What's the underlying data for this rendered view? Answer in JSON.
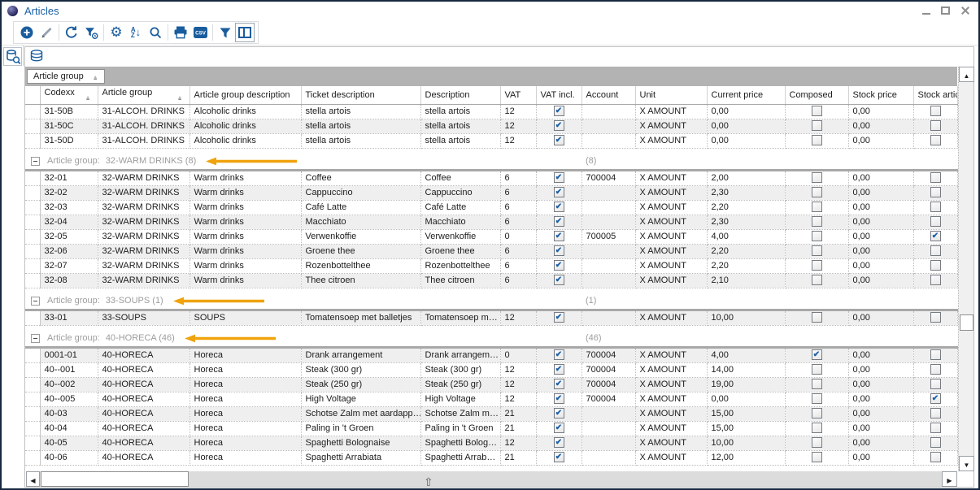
{
  "window": {
    "title": "Articles"
  },
  "toolbar": {
    "csv_label": "CSV",
    "buttons": [
      {
        "name": "add"
      },
      {
        "name": "edit"
      },
      {
        "name": "refresh"
      },
      {
        "name": "filter-reset"
      },
      {
        "name": "settings"
      },
      {
        "name": "sort-az"
      },
      {
        "name": "search"
      },
      {
        "name": "print"
      },
      {
        "name": "export-csv"
      },
      {
        "name": "filter"
      },
      {
        "name": "columns"
      }
    ]
  },
  "group_panel": {
    "chip_label": "Article group"
  },
  "annotation": {
    "arrow_color": "#f0a30c"
  },
  "grid": {
    "columns": [
      "Codexx",
      "Article group",
      "Article group description",
      "Ticket description",
      "Description",
      "VAT",
      "VAT incl.",
      "Account",
      "Unit",
      "Current price",
      "Composed",
      "Stock price",
      "Stock article"
    ],
    "sorted_columns": [
      "Codexx",
      "Article group"
    ],
    "group_label_prefix": "Article group:",
    "groups": [
      {
        "rows": [
          {
            "codexx": "31-50B",
            "article_group": "31-ALCOH. DRINKS",
            "group_desc": "Alcoholic drinks",
            "ticket": "stella artois",
            "desc": "stella artois",
            "vat": "12",
            "vat_incl": true,
            "account": "",
            "unit": "X AMOUNT",
            "price": "0,00",
            "composed": false,
            "stock_price": "0,00",
            "stock_article": false,
            "shaded": false
          },
          {
            "codexx": "31-50C",
            "article_group": "31-ALCOH. DRINKS",
            "group_desc": "Alcoholic drinks",
            "ticket": "stella artois",
            "desc": "stella artois",
            "vat": "12",
            "vat_incl": true,
            "account": "",
            "unit": "X AMOUNT",
            "price": "0,00",
            "composed": false,
            "stock_price": "0,00",
            "stock_article": false,
            "shaded": true
          },
          {
            "codexx": "31-50D",
            "article_group": "31-ALCOH. DRINKS",
            "group_desc": "Alcoholic drinks",
            "ticket": "stella artois",
            "desc": "stella artois",
            "vat": "12",
            "vat_incl": true,
            "account": "",
            "unit": "X AMOUNT",
            "price": "0,00",
            "composed": false,
            "stock_price": "0,00",
            "stock_article": false,
            "shaded": false
          }
        ]
      },
      {
        "label": "32-WARM DRINKS (8)",
        "count": "(8)",
        "rows": [
          {
            "codexx": "32-01",
            "article_group": "32-WARM DRINKS",
            "group_desc": "Warm drinks",
            "ticket": "Coffee",
            "desc": "Coffee",
            "vat": "6",
            "vat_incl": true,
            "account": "700004",
            "unit": "X AMOUNT",
            "price": "2,00",
            "composed": false,
            "stock_price": "0,00",
            "stock_article": false,
            "shaded": false
          },
          {
            "codexx": "32-02",
            "article_group": "32-WARM DRINKS",
            "group_desc": "Warm drinks",
            "ticket": "Cappuccino",
            "desc": "Cappuccino",
            "vat": "6",
            "vat_incl": true,
            "account": "",
            "unit": "X AMOUNT",
            "price": "2,30",
            "composed": false,
            "stock_price": "0,00",
            "stock_article": false,
            "shaded": true
          },
          {
            "codexx": "32-03",
            "article_group": "32-WARM DRINKS",
            "group_desc": "Warm drinks",
            "ticket": "Café Latte",
            "desc": "Café Latte",
            "vat": "6",
            "vat_incl": true,
            "account": "",
            "unit": "X AMOUNT",
            "price": "2,20",
            "composed": false,
            "stock_price": "0,00",
            "stock_article": false,
            "shaded": false
          },
          {
            "codexx": "32-04",
            "article_group": "32-WARM DRINKS",
            "group_desc": "Warm drinks",
            "ticket": "Macchiato",
            "desc": "Macchiato",
            "vat": "6",
            "vat_incl": true,
            "account": "",
            "unit": "X AMOUNT",
            "price": "2,30",
            "composed": false,
            "stock_price": "0,00",
            "stock_article": false,
            "shaded": true
          },
          {
            "codexx": "32-05",
            "article_group": "32-WARM DRINKS",
            "group_desc": "Warm drinks",
            "ticket": "Verwenkoffie",
            "desc": "Verwenkoffie",
            "vat": "0",
            "vat_incl": true,
            "account": "700005",
            "unit": "X AMOUNT",
            "price": "4,00",
            "composed": false,
            "stock_price": "0,00",
            "stock_article": true,
            "shaded": false
          },
          {
            "codexx": "32-06",
            "article_group": "32-WARM DRINKS",
            "group_desc": "Warm drinks",
            "ticket": "Groene thee",
            "desc": "Groene thee",
            "vat": "6",
            "vat_incl": true,
            "account": "",
            "unit": "X AMOUNT",
            "price": "2,20",
            "composed": false,
            "stock_price": "0,00",
            "stock_article": false,
            "shaded": true
          },
          {
            "codexx": "32-07",
            "article_group": "32-WARM DRINKS",
            "group_desc": "Warm drinks",
            "ticket": "Rozenbottelthee",
            "desc": "Rozenbottelthee",
            "vat": "6",
            "vat_incl": true,
            "account": "",
            "unit": "X AMOUNT",
            "price": "2,20",
            "composed": false,
            "stock_price": "0,00",
            "stock_article": false,
            "shaded": false
          },
          {
            "codexx": "32-08",
            "article_group": "32-WARM DRINKS",
            "group_desc": "Warm drinks",
            "ticket": "Thee citroen",
            "desc": "Thee citroen",
            "vat": "6",
            "vat_incl": true,
            "account": "",
            "unit": "X AMOUNT",
            "price": "2,10",
            "composed": false,
            "stock_price": "0,00",
            "stock_article": false,
            "shaded": true
          }
        ]
      },
      {
        "label": "33-SOUPS (1)",
        "count": "(1)",
        "rows": [
          {
            "codexx": "33-01",
            "article_group": "33-SOUPS",
            "group_desc": "SOUPS",
            "ticket": "Tomatensoep met balletjes",
            "desc": "Tomatensoep m…",
            "vat": "12",
            "vat_incl": true,
            "account": "",
            "unit": "X AMOUNT",
            "price": "10,00",
            "composed": false,
            "stock_price": "0,00",
            "stock_article": false,
            "shaded": true
          }
        ]
      },
      {
        "label": "40-HORECA (46)",
        "count": "(46)",
        "rows": [
          {
            "codexx": "0001-01",
            "article_group": "40-HORECA",
            "group_desc": "Horeca",
            "ticket": "Drank arrangement",
            "desc": "Drank arrangem…",
            "vat": "0",
            "vat_incl": true,
            "account": "700004",
            "unit": "X AMOUNT",
            "price": "4,00",
            "composed": true,
            "stock_price": "0,00",
            "stock_article": false,
            "shaded": true
          },
          {
            "codexx": "40--001",
            "article_group": "40-HORECA",
            "group_desc": "Horeca",
            "ticket": "Steak (300 gr)",
            "desc": "Steak (300 gr)",
            "vat": "12",
            "vat_incl": true,
            "account": "700004",
            "unit": "X AMOUNT",
            "price": "14,00",
            "composed": false,
            "stock_price": "0,00",
            "stock_article": false,
            "shaded": false
          },
          {
            "codexx": "40--002",
            "article_group": "40-HORECA",
            "group_desc": "Horeca",
            "ticket": "Steak (250 gr)",
            "desc": "Steak (250 gr)",
            "vat": "12",
            "vat_incl": true,
            "account": "700004",
            "unit": "X AMOUNT",
            "price": "19,00",
            "composed": false,
            "stock_price": "0,00",
            "stock_article": false,
            "shaded": true
          },
          {
            "codexx": "40--005",
            "article_group": "40-HORECA",
            "group_desc": "Horeca",
            "ticket": "High Voltage",
            "desc": "High Voltage",
            "vat": "12",
            "vat_incl": true,
            "account": "700004",
            "unit": "X AMOUNT",
            "price": "0,00",
            "composed": false,
            "stock_price": "0,00",
            "stock_article": true,
            "shaded": false
          },
          {
            "codexx": "40-03",
            "article_group": "40-HORECA",
            "group_desc": "Horeca",
            "ticket": "Schotse Zalm met aardapp…",
            "desc": "Schotse Zalm m…",
            "vat": "21",
            "vat_incl": true,
            "account": "",
            "unit": "X AMOUNT",
            "price": "15,00",
            "composed": false,
            "stock_price": "0,00",
            "stock_article": false,
            "shaded": true
          },
          {
            "codexx": "40-04",
            "article_group": "40-HORECA",
            "group_desc": "Horeca",
            "ticket": "Paling in 't Groen",
            "desc": "Paling in 't Groen",
            "vat": "21",
            "vat_incl": true,
            "account": "",
            "unit": "X AMOUNT",
            "price": "15,00",
            "composed": false,
            "stock_price": "0,00",
            "stock_article": false,
            "shaded": false
          },
          {
            "codexx": "40-05",
            "article_group": "40-HORECA",
            "group_desc": "Horeca",
            "ticket": "Spaghetti Bolognaise",
            "desc": "Spaghetti Bolog…",
            "vat": "12",
            "vat_incl": true,
            "account": "",
            "unit": "X AMOUNT",
            "price": "10,00",
            "composed": false,
            "stock_price": "0,00",
            "stock_article": false,
            "shaded": true
          },
          {
            "codexx": "40-06",
            "article_group": "40-HORECA",
            "group_desc": "Horeca",
            "ticket": "Spaghetti Arrabiata",
            "desc": "Spaghetti Arrab…",
            "vat": "21",
            "vat_incl": true,
            "account": "",
            "unit": "X AMOUNT",
            "price": "12,00",
            "composed": false,
            "stock_price": "0,00",
            "stock_article": false,
            "shaded": false
          }
        ]
      }
    ]
  }
}
